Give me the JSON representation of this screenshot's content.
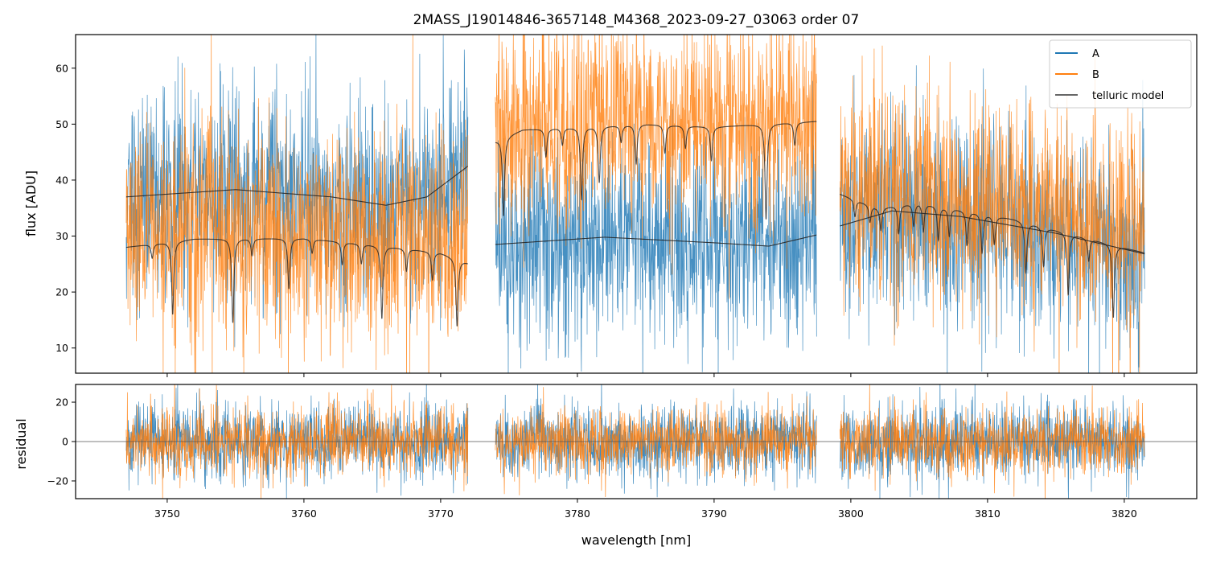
{
  "chart_data": {
    "type": "line",
    "title": "2MASS_J19014846-3657148_M4368_2023-09-27_03063  order 07",
    "colors": {
      "A": "#1f77b4",
      "B": "#ff7f0e",
      "telluric": "#222222",
      "zero_line": "#555555"
    },
    "legend": {
      "placement": "top-right",
      "entries": [
        {
          "label": "A",
          "color": "#1f77b4"
        },
        {
          "label": "B",
          "color": "#ff7f0e"
        },
        {
          "label": "telluric model",
          "color": "#333333"
        }
      ]
    },
    "xlabel": "wavelength [nm]",
    "xlim": [
      3743.3,
      3825.3
    ],
    "xticks": [
      "3750",
      "3760",
      "3770",
      "3780",
      "3790",
      "3800",
      "3810",
      "3820"
    ],
    "segments": [
      {
        "x_range": [
          3747.0,
          3772.0
        ]
      },
      {
        "x_range": [
          3774.0,
          3797.5
        ]
      },
      {
        "x_range": [
          3799.2,
          3821.5
        ]
      }
    ],
    "flux_panel": {
      "ylabel": "flux [ADU]",
      "ylim": [
        5.5,
        66
      ],
      "yticks": [
        "10",
        "20",
        "30",
        "40",
        "50",
        "60"
      ],
      "series": [
        {
          "name": "A",
          "segment_means": [
            [
              [
                3747,
                37
              ],
              [
                3755,
                38.3
              ],
              [
                3762,
                37
              ],
              [
                3766,
                35.5
              ],
              [
                3769,
                37
              ],
              [
                3772,
                42.5
              ]
            ],
            [
              [
                3774,
                28.5
              ],
              [
                3782,
                29.8
              ],
              [
                3790,
                28.8
              ],
              [
                3794,
                28.2
              ],
              [
                3797.5,
                30.2
              ]
            ],
            [
              [
                3799.2,
                31.8
              ],
              [
                3803,
                34.5
              ],
              [
                3808,
                33.5
              ],
              [
                3815,
                30.5
              ],
              [
                3821.5,
                26.8
              ]
            ]
          ],
          "noise_sigma": 9
        },
        {
          "name": "B",
          "segment_means": [
            [
              [
                3747,
                30
              ],
              [
                3760,
                31
              ],
              [
                3772,
                28
              ]
            ],
            [
              [
                3774,
                48
              ],
              [
                3785,
                51
              ],
              [
                3797.5,
                49
              ]
            ],
            [
              [
                3799.2,
                38
              ],
              [
                3810,
                36
              ],
              [
                3821.5,
                31
              ]
            ]
          ],
          "noise_sigma": 9.5
        }
      ],
      "telluric_model": [
        {
          "segment": 0,
          "smooth": [
            [
              3747,
              37
            ],
            [
              3755,
              38.3
            ],
            [
              3762,
              37
            ],
            [
              3766,
              35.5
            ],
            [
              3769,
              37
            ],
            [
              3772,
              42.5
            ]
          ],
          "lined": [
            [
              3747,
              28
            ],
            [
              3752,
              29.5
            ],
            [
              3760,
              29.6
            ],
            [
              3766,
              28.2
            ],
            [
              3770,
              27
            ],
            [
              3772,
              25.2
            ]
          ],
          "absorption_lines": [
            [
              3750.4,
              13
            ],
            [
              3754.8,
              15
            ],
            [
              3758.9,
              9
            ],
            [
              3765.7,
              13
            ],
            [
              3771.2,
              12
            ],
            [
              3748.9,
              2.5
            ],
            [
              3756.2,
              3
            ],
            [
              3760.6,
              2.5
            ],
            [
              3762.8,
              4
            ],
            [
              3764.2,
              3.5
            ],
            [
              3767.5,
              4
            ],
            [
              3769.4,
              5
            ]
          ]
        },
        {
          "segment": 1,
          "smooth": [
            [
              3774,
              28.5
            ],
            [
              3782,
              29.8
            ],
            [
              3790,
              28.8
            ],
            [
              3794,
              28.2
            ],
            [
              3797.5,
              30.2
            ]
          ],
          "lined": [
            [
              3774,
              47
            ],
            [
              3776,
              49
            ],
            [
              3785,
              50
            ],
            [
              3790,
              49.5
            ],
            [
              3797.5,
              50.5
            ]
          ],
          "absorption_lines": [
            [
              3774.6,
              14
            ],
            [
              3777.7,
              5
            ],
            [
              3780.3,
              13
            ],
            [
              3781.6,
              10
            ],
            [
              3784.3,
              7
            ],
            [
              3786.4,
              5
            ],
            [
              3789.8,
              6
            ],
            [
              3793.8,
              17
            ],
            [
              3795.9,
              4
            ],
            [
              3778.9,
              3
            ],
            [
              3783.2,
              3
            ],
            [
              3787.9,
              4
            ]
          ]
        },
        {
          "segment": 2,
          "smooth": [
            [
              3799.2,
              31.8
            ],
            [
              3803,
              34.5
            ],
            [
              3808,
              33.5
            ],
            [
              3815,
              30.5
            ],
            [
              3821.5,
              26.8
            ]
          ],
          "lined": [
            [
              3799.2,
              37.5
            ],
            [
              3802,
              35
            ],
            [
              3805,
              36
            ],
            [
              3812,
              33
            ],
            [
              3821.5,
              27
            ]
          ],
          "absorption_lines": [
            [
              3800.3,
              3
            ],
            [
              3801.4,
              3
            ],
            [
              3802.2,
              4
            ],
            [
              3803.5,
              5
            ],
            [
              3804.6,
              4
            ],
            [
              3805.3,
              5
            ],
            [
              3806.4,
              6
            ],
            [
              3807.2,
              5
            ],
            [
              3808.5,
              6
            ],
            [
              3809.6,
              7
            ],
            [
              3810.5,
              5
            ],
            [
              3812.8,
              9
            ],
            [
              3814.1,
              7
            ],
            [
              3815.9,
              11
            ],
            [
              3817.4,
              4
            ],
            [
              3819.2,
              13
            ]
          ]
        }
      ]
    },
    "residual_panel": {
      "ylabel": "residual",
      "ylim": [
        -29,
        29
      ],
      "yticks": [
        "20",
        "0",
        "−20"
      ],
      "zero_line": 0,
      "series": [
        {
          "name": "A",
          "noise_sigma": 9.5
        },
        {
          "name": "B",
          "noise_sigma": 8.5
        }
      ]
    }
  }
}
